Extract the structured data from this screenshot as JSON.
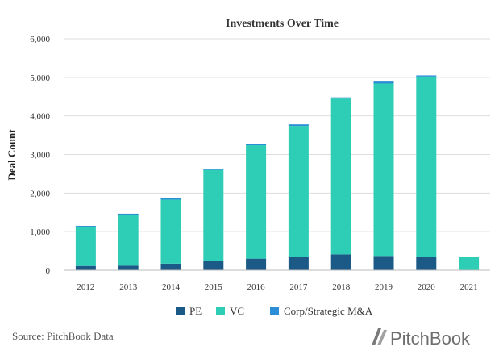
{
  "chart_data": {
    "type": "bar",
    "stacked": true,
    "title": "Investments Over Time",
    "xlabel": "",
    "ylabel": "Deal Count",
    "ylim": [
      0,
      6000
    ],
    "yticks": [
      "0",
      "1,000",
      "2,000",
      "3,000",
      "4,000",
      "5,000",
      "6,000"
    ],
    "ytick_values": [
      0,
      1000,
      2000,
      3000,
      4000,
      5000,
      6000
    ],
    "categories": [
      "2012",
      "2013",
      "2014",
      "2015",
      "2016",
      "2017",
      "2018",
      "2019",
      "2020",
      "2021"
    ],
    "series": [
      {
        "name": "PE",
        "color": "#1b5a86",
        "values": [
          110,
          120,
          170,
          230,
          300,
          340,
          410,
          370,
          340,
          0
        ]
      },
      {
        "name": "VC",
        "color": "#2ecdb6",
        "values": [
          1020,
          1320,
          1660,
          2370,
          2940,
          3400,
          4040,
          4470,
          4680,
          350
        ]
      },
      {
        "name": "Corp/Strategic M&A",
        "color": "#2c8fd6",
        "values": [
          20,
          25,
          35,
          30,
          35,
          40,
          30,
          50,
          30,
          0
        ]
      }
    ],
    "grid": true,
    "legend_position": "bottom"
  },
  "footer": {
    "source": "Source: PitchBook Data",
    "brand": "PitchBook",
    "brand_icon": "pitchbook-logo-icon"
  }
}
